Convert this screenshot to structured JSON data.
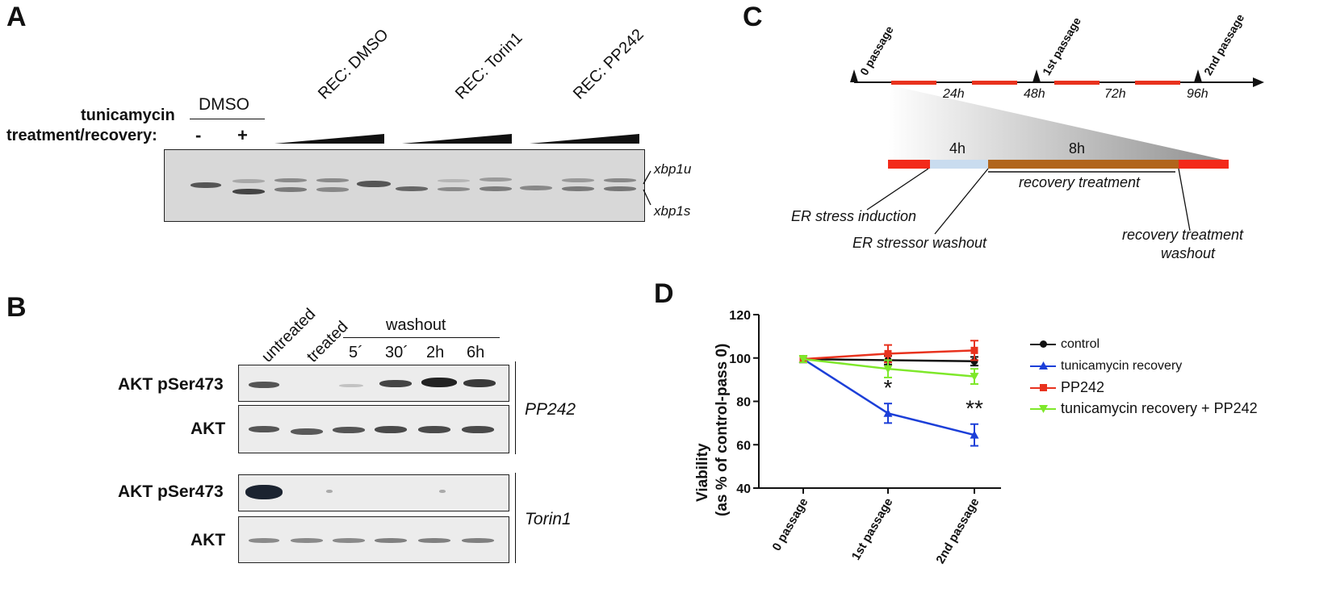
{
  "panels": {
    "a": "A",
    "b": "B",
    "c": "C",
    "d": "D"
  },
  "panel_a": {
    "row_label_1": "tunicamycin",
    "row_label_2": "treatment/recovery:",
    "groups": [
      "DMSO",
      "REC: DMSO",
      "REC: Torin1",
      "REC: PP242"
    ],
    "signs": [
      "-",
      "+"
    ],
    "band_labels": [
      "xbp1u",
      "xbp1s"
    ]
  },
  "panel_b": {
    "lanes": [
      "untreated",
      "treated"
    ],
    "washout_label": "washout",
    "times": [
      "5´",
      "30´",
      "2h",
      "6h"
    ],
    "rows": [
      "AKT pSer473",
      "AKT",
      "AKT pSer473",
      "AKT"
    ],
    "inhibitors": [
      "PP242",
      "Torin1"
    ]
  },
  "panel_c": {
    "passages": [
      "0 passage",
      "1st passage",
      "2nd passage"
    ],
    "hours": [
      "24h",
      "48h",
      "72h",
      "96h"
    ],
    "seg_4h": "4h",
    "seg_8h": "8h",
    "recovery_treatment": "recovery treatment",
    "er_stress_induction": "ER stress induction",
    "er_stressor_washout": "ER stressor washout",
    "recovery_washout_1": "recovery treatment",
    "recovery_washout_2": "washout"
  },
  "chart_data": {
    "type": "line",
    "categories": [
      "0 passage",
      "1st passage",
      "2nd passage"
    ],
    "ylabel_1": "Viability",
    "ylabel_2": "(as % of control-pass 0)",
    "ylim": [
      40,
      120
    ],
    "yticks": [
      "40",
      "60",
      "80",
      "100",
      "120"
    ],
    "series": [
      {
        "name": "control",
        "values": [
          99.5,
          99,
          98.5
        ],
        "err": [
          1.5,
          2,
          2
        ],
        "color": "#111111",
        "marker": "circle"
      },
      {
        "name": "tunicamycin recovery",
        "values": [
          99.5,
          74.5,
          64.5
        ],
        "err": [
          1.5,
          4.5,
          5
        ],
        "color": "#1c3fd8",
        "marker": "triangle-up"
      },
      {
        "name": "PP242",
        "values": [
          99.5,
          102,
          103.5
        ],
        "err": [
          1.5,
          4,
          4.5
        ],
        "color": "#e8321e",
        "marker": "square"
      },
      {
        "name": "tunicamycin recovery + PP242",
        "values": [
          99.5,
          95,
          91.5
        ],
        "err": [
          1.5,
          4,
          3.5
        ],
        "color": "#7ee82a",
        "marker": "triangle-down"
      }
    ],
    "annotations": [
      {
        "text": "*",
        "category": "1st passage"
      },
      {
        "text": "**",
        "category": "2nd passage"
      }
    ]
  }
}
